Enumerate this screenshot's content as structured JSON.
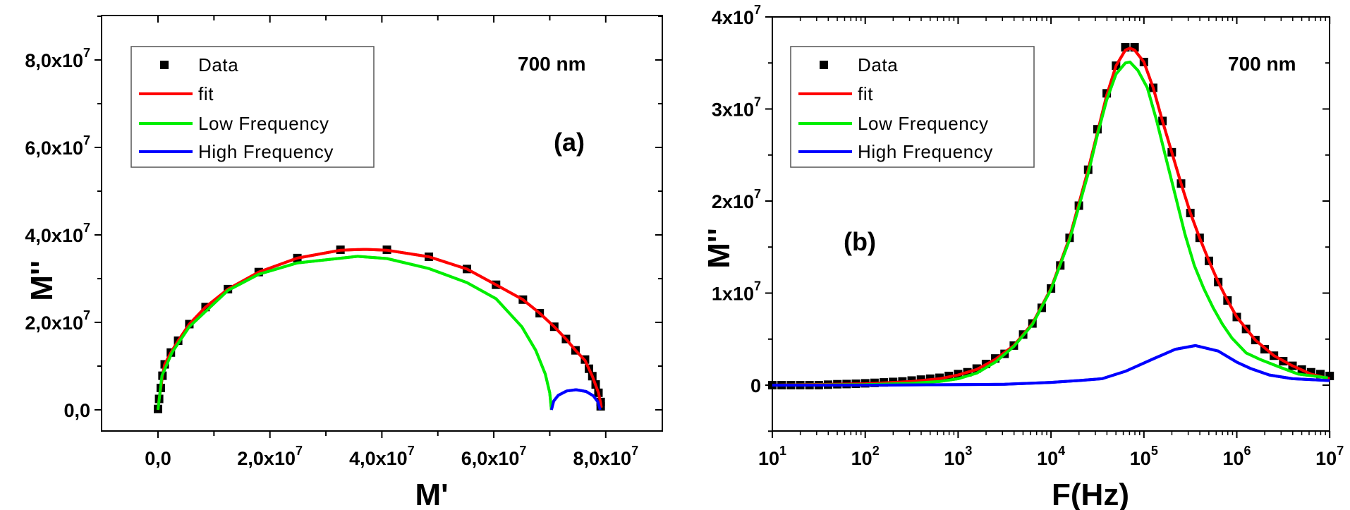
{
  "colors": {
    "data": "#000000",
    "fit": "#ff0000",
    "low_frequency": "#00ee00",
    "high_frequency": "#0000ff"
  },
  "chart_data": [
    {
      "type": "scatter",
      "panel_label": "(a)",
      "annotation": "700 nm",
      "xlabel": "M'",
      "ylabel": "M''",
      "xlim": [
        -10000000.0,
        90000000.0
      ],
      "ylim": [
        -5000000.0,
        90000000.0
      ],
      "x_ticks": [
        {
          "value": 0,
          "label": "0,0",
          "exp": ""
        },
        {
          "value": 20000000.0,
          "label": "2,0x10",
          "exp": "7"
        },
        {
          "value": 40000000.0,
          "label": "4,0x10",
          "exp": "7"
        },
        {
          "value": 60000000.0,
          "label": "6,0x10",
          "exp": "7"
        },
        {
          "value": 80000000.0,
          "label": "8,0x10",
          "exp": "7"
        }
      ],
      "y_ticks": [
        {
          "value": 0,
          "label": "0,0",
          "exp": ""
        },
        {
          "value": 20000000.0,
          "label": "2,0x10",
          "exp": "7"
        },
        {
          "value": 40000000.0,
          "label": "4,0x10",
          "exp": "7"
        },
        {
          "value": 60000000.0,
          "label": "6,0x10",
          "exp": "7"
        },
        {
          "value": 80000000.0,
          "label": "8,0x10",
          "exp": "7"
        }
      ],
      "unit": 10000000.0,
      "legend": {
        "placement": "top-left",
        "entries": [
          "Data",
          "fit",
          "Low Frequency",
          "High Frequency"
        ]
      },
      "series": [
        {
          "name": "Data",
          "kind": "markers",
          "x": [
            0,
            0.02,
            0.05,
            0.08,
            0.12,
            0.23,
            0.36,
            0.56,
            0.85,
            1.25,
            1.8,
            2.49,
            3.26,
            4.09,
            4.84,
            5.52,
            6.04,
            6.52,
            6.82,
            7.08,
            7.29,
            7.46,
            7.63,
            7.7,
            7.76,
            7.82,
            7.87,
            7.91,
            7.91
          ],
          "y": [
            0.02,
            0.25,
            0.5,
            0.78,
            1.04,
            1.31,
            1.58,
            1.96,
            2.35,
            2.76,
            3.15,
            3.47,
            3.66,
            3.66,
            3.5,
            3.22,
            2.86,
            2.52,
            2.21,
            1.9,
            1.62,
            1.36,
            1.15,
            0.94,
            0.77,
            0.58,
            0.39,
            0.18,
            0.08
          ]
        },
        {
          "name": "fit",
          "kind": "line",
          "x": [
            0,
            0.02,
            0.05,
            0.08,
            0.12,
            0.23,
            0.36,
            0.56,
            0.85,
            1.25,
            1.8,
            2.49,
            3.26,
            3.7,
            4.09,
            4.84,
            5.52,
            6.04,
            6.52,
            6.82,
            7.08,
            7.29,
            7.46,
            7.63,
            7.76,
            7.87,
            7.91,
            7.92
          ],
          "y": [
            0,
            0.25,
            0.5,
            0.78,
            1.04,
            1.31,
            1.58,
            1.96,
            2.35,
            2.76,
            3.15,
            3.47,
            3.65,
            3.67,
            3.65,
            3.5,
            3.22,
            2.86,
            2.52,
            2.21,
            1.9,
            1.62,
            1.36,
            1.13,
            0.77,
            0.39,
            0.15,
            0.05
          ]
        },
        {
          "name": "Low Frequency",
          "kind": "line",
          "x": [
            0,
            0.07,
            0.25,
            0.56,
            1.25,
            1.8,
            2.49,
            3.57,
            4.09,
            4.84,
            5.52,
            6.04,
            6.5,
            6.75,
            6.92,
            7.0,
            7.03
          ],
          "y": [
            0,
            0.78,
            1.31,
            1.9,
            2.73,
            3.1,
            3.36,
            3.51,
            3.46,
            3.23,
            2.91,
            2.54,
            1.9,
            1.36,
            0.82,
            0.39,
            0
          ]
        },
        {
          "name": "High Frequency",
          "kind": "line",
          "x": [
            7.03,
            7.07,
            7.15,
            7.3,
            7.47,
            7.65,
            7.78,
            7.86,
            7.9
          ],
          "y": [
            0,
            0.2,
            0.33,
            0.43,
            0.46,
            0.42,
            0.32,
            0.18,
            0
          ]
        }
      ]
    },
    {
      "type": "scatter",
      "panel_label": "(b)",
      "annotation": "700 nm",
      "xlabel": "F(Hz)",
      "ylabel": "M''",
      "xscale": "log",
      "xlim": [
        10,
        10000000.0
      ],
      "ylim": [
        -5000000.0,
        40000000.0
      ],
      "x_ticks": [
        {
          "value": 10,
          "label": "10",
          "exp": "1"
        },
        {
          "value": 100,
          "label": "10",
          "exp": "2"
        },
        {
          "value": 1000,
          "label": "10",
          "exp": "3"
        },
        {
          "value": 10000,
          "label": "10",
          "exp": "4"
        },
        {
          "value": 100000,
          "label": "10",
          "exp": "5"
        },
        {
          "value": 1000000,
          "label": "10",
          "exp": "6"
        },
        {
          "value": 10000000,
          "label": "10",
          "exp": "7"
        }
      ],
      "y_ticks": [
        {
          "value": 0,
          "label": "0",
          "exp": ""
        },
        {
          "value": 10000000.0,
          "label": "1x10",
          "exp": "7"
        },
        {
          "value": 20000000.0,
          "label": "2x10",
          "exp": "7"
        },
        {
          "value": 30000000.0,
          "label": "3x10",
          "exp": "7"
        },
        {
          "value": 40000000.0,
          "label": "4x10",
          "exp": "7"
        }
      ],
      "unit": 10000000.0,
      "legend": {
        "placement": "top-left",
        "entries": [
          "Data",
          "fit",
          "Low Frequency",
          "High Frequency"
        ]
      },
      "series": [
        {
          "name": "Data",
          "kind": "markers",
          "log10_f": [
            1.0,
            1.1,
            1.2,
            1.3,
            1.4,
            1.5,
            1.6,
            1.7,
            1.8,
            1.9,
            2.0,
            2.1,
            2.2,
            2.3,
            2.4,
            2.5,
            2.6,
            2.7,
            2.8,
            2.9,
            3.0,
            3.1,
            3.2,
            3.3,
            3.4,
            3.5,
            3.6,
            3.7,
            3.8,
            3.9,
            4.0,
            4.1,
            4.2,
            4.3,
            4.4,
            4.5,
            4.6,
            4.7,
            4.8,
            4.9,
            5.0,
            5.1,
            5.2,
            5.3,
            5.4,
            5.5,
            5.6,
            5.7,
            5.8,
            5.9,
            6.0,
            6.1,
            6.2,
            6.3,
            6.4,
            6.5,
            6.6,
            6.7,
            6.8,
            6.9,
            7.0
          ],
          "y": [
            0,
            0,
            0,
            0,
            0,
            0,
            0.005,
            0.01,
            0.012,
            0.015,
            0.02,
            0.025,
            0.03,
            0.035,
            0.04,
            0.05,
            0.06,
            0.07,
            0.08,
            0.1,
            0.12,
            0.14,
            0.18,
            0.23,
            0.29,
            0.34,
            0.43,
            0.55,
            0.67,
            0.84,
            1.05,
            1.3,
            1.6,
            1.95,
            2.34,
            2.78,
            3.17,
            3.47,
            3.67,
            3.67,
            3.51,
            3.23,
            2.87,
            2.53,
            2.19,
            1.87,
            1.6,
            1.35,
            1.12,
            0.92,
            0.74,
            0.61,
            0.49,
            0.39,
            0.32,
            0.26,
            0.21,
            0.17,
            0.14,
            0.12,
            0.1
          ]
        },
        {
          "name": "fit",
          "kind": "line",
          "log10_f": [
            1.0,
            2.0,
            2.5,
            2.8,
            3.0,
            3.2,
            3.4,
            3.6,
            3.8,
            4.0,
            4.2,
            4.4,
            4.6,
            4.7,
            4.8,
            4.85,
            4.9,
            5.0,
            5.1,
            5.2,
            5.3,
            5.4,
            5.5,
            5.6,
            5.7,
            5.8,
            5.9,
            6.0,
            6.2,
            6.4,
            6.6,
            6.8,
            7.0
          ],
          "y": [
            0,
            0.015,
            0.04,
            0.07,
            0.11,
            0.17,
            0.28,
            0.43,
            0.67,
            1.05,
            1.6,
            2.34,
            3.15,
            3.47,
            3.64,
            3.66,
            3.64,
            3.51,
            3.23,
            2.87,
            2.53,
            2.19,
            1.87,
            1.6,
            1.35,
            1.12,
            0.92,
            0.74,
            0.49,
            0.32,
            0.21,
            0.12,
            0.07
          ]
        },
        {
          "name": "Low Frequency",
          "kind": "line",
          "log10_f": [
            1.0,
            2.0,
            2.5,
            2.8,
            3.0,
            3.2,
            3.4,
            3.6,
            3.8,
            4.0,
            4.2,
            4.4,
            4.5,
            4.6,
            4.7,
            4.8,
            4.85,
            4.935,
            5.037,
            5.138,
            5.239,
            5.341,
            5.442,
            5.543,
            5.645,
            5.746,
            5.847,
            5.948,
            6.1,
            6.25,
            6.45,
            6.66,
            6.98
          ],
          "y": [
            0,
            0.005,
            0.02,
            0.04,
            0.07,
            0.13,
            0.25,
            0.42,
            0.66,
            1.04,
            1.58,
            2.3,
            2.72,
            3.1,
            3.38,
            3.5,
            3.51,
            3.42,
            3.23,
            2.87,
            2.46,
            2.05,
            1.64,
            1.3,
            1.05,
            0.84,
            0.66,
            0.51,
            0.35,
            0.28,
            0.2,
            0.12,
            0.08
          ]
        },
        {
          "name": "High Frequency",
          "kind": "line",
          "log10_f": [
            1.0,
            2.0,
            3.0,
            3.5,
            4.0,
            4.3,
            4.55,
            4.8,
            5.087,
            5.34,
            5.556,
            5.8,
            6.0,
            6.15,
            6.35,
            6.6,
            7.0
          ],
          "y": [
            0,
            0,
            0.005,
            0.01,
            0.03,
            0.05,
            0.07,
            0.15,
            0.28,
            0.39,
            0.43,
            0.37,
            0.25,
            0.18,
            0.11,
            0.07,
            0.05
          ]
        }
      ]
    }
  ]
}
